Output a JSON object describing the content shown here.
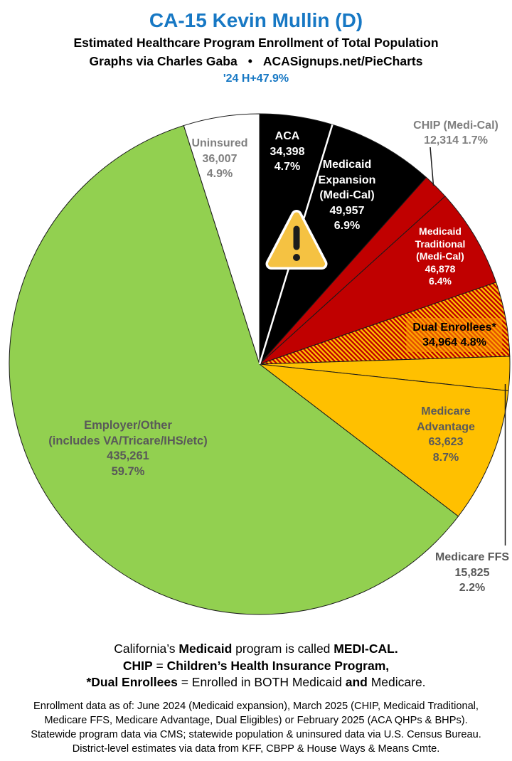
{
  "header": {
    "title": "CA-15 Kevin Mullin (D)",
    "subtitle": "Estimated Healthcare Program Enrollment of Total Population",
    "credit_left": "Graphs via Charles Gaba",
    "credit_bullet": "•",
    "credit_right": "ACASignups.net/PieCharts",
    "stat_line": "'24 H+47.9%"
  },
  "chart_data": {
    "type": "pie",
    "title": "Estimated Healthcare Program Enrollment of Total Population",
    "start_angle": "12 o'clock",
    "direction": "clockwise",
    "units": "people",
    "total_pct": 100.0,
    "hatch": {
      "color1": "#C00000",
      "color2": "#FFC000"
    },
    "accent_blue": "#1778C4",
    "segments": [
      {
        "id": "aca",
        "label": "ACA",
        "value": 34398,
        "pct": 4.7,
        "color": "#000000",
        "text_color": "#FFFFFF"
      },
      {
        "id": "medicaid_expansion",
        "label": "Medicaid Expansion (Medi-Cal)",
        "value": 49957,
        "pct": 6.9,
        "color": "#000000",
        "text_color": "#FFFFFF"
      },
      {
        "id": "chip",
        "label": "CHIP (Medi-Cal)",
        "value": 12314,
        "pct": 1.7,
        "color": "#C00000",
        "text_color": "#7F7F7F"
      },
      {
        "id": "medicaid_traditional",
        "label": "Medicaid Traditional (Medi-Cal)",
        "value": 46878,
        "pct": 6.4,
        "color": "#C00000",
        "text_color": "#FFFFFF"
      },
      {
        "id": "dual_enrollees",
        "label": "Dual Enrollees*",
        "value": 34964,
        "pct": 4.8,
        "color": "hatch",
        "text_color": "#000000"
      },
      {
        "id": "medicare_ffs",
        "label": "Medicare FFS",
        "value": 15825,
        "pct": 2.2,
        "color": "#FFC000",
        "text_color": "#595959"
      },
      {
        "id": "medicare_advantage",
        "label": "Medicare Advantage",
        "value": 63623,
        "pct": 8.7,
        "color": "#FFC000",
        "text_color": "#595959"
      },
      {
        "id": "employer_other",
        "label": "Employer/Other (includes VA/Tricare/IHS/etc)",
        "value": 435261,
        "pct": 59.7,
        "color": "#92D050",
        "text_color": "#595959"
      },
      {
        "id": "uninsured",
        "label": "Uninsured",
        "value": 36007,
        "pct": 4.9,
        "color": "#FFFFFF",
        "text_color": "#7F7F7F"
      }
    ]
  },
  "pie_labels": {
    "uninsured": {
      "lines": [
        "Uninsured",
        "36,007",
        "4.9%"
      ]
    },
    "aca": {
      "lines": [
        "ACA",
        "34,398",
        "4.7%"
      ]
    },
    "medicaid_expansion": {
      "lines": [
        "Medicaid",
        "Expansion",
        "(Medi-Cal)",
        "49,957",
        "6.9%"
      ]
    },
    "chip": {
      "lines": [
        "CHIP (Medi-Cal)",
        "12,314 1.7%"
      ]
    },
    "medicaid_traditional": {
      "lines": [
        "Medicaid",
        "Traditional",
        "(Medi-Cal)",
        "46,878",
        "6.4%"
      ]
    },
    "dual_enrollees": {
      "lines": [
        "Dual Enrollees*",
        "34,964 4.8%"
      ]
    },
    "medicare_advantage": {
      "lines": [
        "Medicare",
        "Advantage",
        "63,623",
        "8.7%"
      ]
    },
    "medicare_ffs": {
      "lines": [
        "Medicare FFS",
        "15,825",
        "2.2%"
      ]
    },
    "employer_other": {
      "lines": [
        "Employer/Other",
        "(includes VA/Tricare/IHS/etc)",
        "435,261",
        "59.7%"
      ]
    }
  },
  "footnotes": {
    "line1": [
      {
        "t": "California’s ",
        "b": false
      },
      {
        "t": "Medicaid",
        "b": true
      },
      {
        "t": " program is called ",
        "b": false
      },
      {
        "t": "MEDI-CAL.",
        "b": true
      }
    ],
    "line2": [
      {
        "t": "CHIP",
        "b": true
      },
      {
        "t": " = ",
        "b": false
      },
      {
        "t": "Children’s Health Insurance Program,",
        "b": true
      }
    ],
    "line3": [
      {
        "t": "*Dual Enrollees",
        "b": true
      },
      {
        "t": " = Enrolled in BOTH Medicaid ",
        "b": false
      },
      {
        "t": "and",
        "b": true
      },
      {
        "t": " Medicare.",
        "b": false
      }
    ]
  },
  "source_lines": [
    "Enrollment data as of: June 2024 (Medicaid expansion), March 2025 (CHIP, Medicaid Traditional,",
    "Medicare FFS, Medicare Advantage, Dual Eligibles) or February 2025 (ACA QHPs & BHPs).",
    "Statewide program data via CMS; statewide population & uninsured data via U.S. Census Bureau.",
    "District-level estimates via data from KFF, CBPP & House Ways & Means Cmte."
  ]
}
